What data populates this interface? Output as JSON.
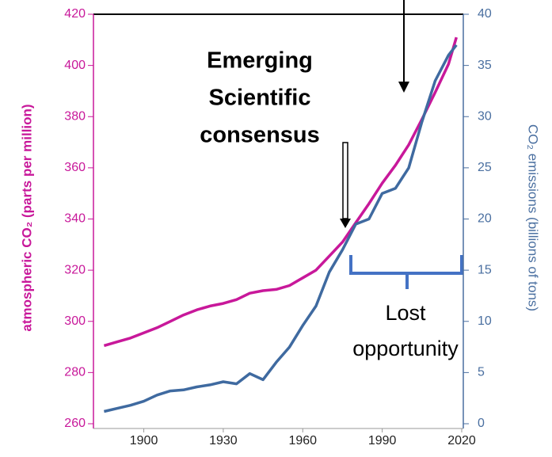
{
  "chart_data": {
    "type": "line",
    "x": [
      1885,
      1890,
      1895,
      1900,
      1905,
      1910,
      1915,
      1920,
      1925,
      1930,
      1935,
      1940,
      1945,
      1950,
      1955,
      1960,
      1965,
      1970,
      1975,
      1980,
      1985,
      1990,
      1995,
      2000,
      2005,
      2010,
      2015,
      2018
    ],
    "series": [
      {
        "name": "atmospheric CO₂",
        "color": "#c8189a",
        "values": [
          290.5,
          292,
          293.5,
          295.5,
          297.5,
          300,
          302.5,
          304.5,
          306,
          307,
          308.5,
          311,
          312,
          312.5,
          314,
          317,
          320,
          325.5,
          331,
          338.5,
          346,
          354,
          361,
          369,
          379,
          389.5,
          400.5,
          411
        ]
      },
      {
        "name": "CO₂ emissions",
        "color": "#3f6aa0",
        "axis": "y2",
        "values": [
          1.2,
          1.5,
          1.8,
          2.2,
          2.8,
          3.2,
          3.3,
          3.6,
          3.8,
          4.1,
          3.9,
          4.9,
          4.3,
          6,
          7.5,
          9.6,
          11.5,
          14.8,
          17,
          19.5,
          20,
          22.5,
          23,
          25,
          29.5,
          33.5,
          36,
          37
        ]
      }
    ],
    "xlim": [
      1881,
      2020
    ],
    "xticks": [
      1900,
      1930,
      1960,
      1990,
      2020
    ],
    "ylim": [
      260,
      420
    ],
    "yticks": [
      260,
      280,
      300,
      320,
      340,
      360,
      380,
      400,
      420
    ],
    "y2lim": [
      0,
      40
    ],
    "y2ticks": [
      0,
      5,
      10,
      15,
      20,
      25,
      30,
      35,
      40
    ],
    "ylabel": "atmospheric CO₂ (parts per million)",
    "y2label": "CO₂ emissions (billions of tons)",
    "annotations": [
      [
        "Emerging",
        "Scientific",
        "consensus"
      ],
      [
        "Lost",
        "opportunity"
      ]
    ]
  }
}
